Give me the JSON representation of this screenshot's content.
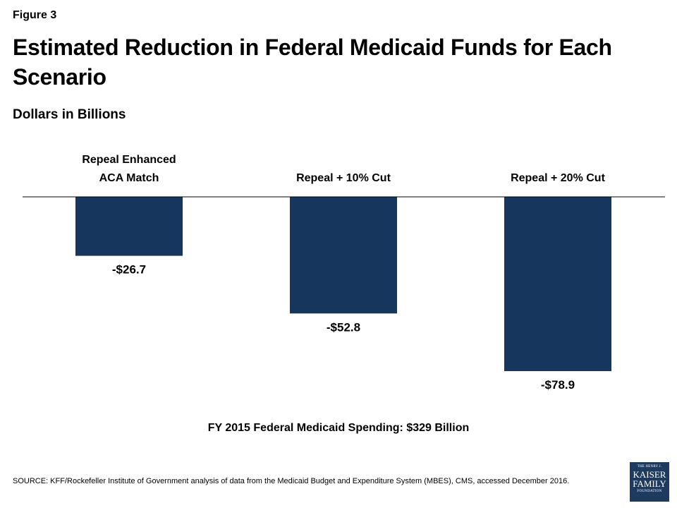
{
  "header": {
    "figure_label": "Figure 3",
    "subtitle": "Dollars in Billions"
  },
  "chart_data": {
    "type": "bar",
    "title": "Estimated Reduction in Federal Medicaid Funds for Each Scenario",
    "subtitle": "Dollars in Billions",
    "categories": [
      [
        "Repeal Enhanced",
        "ACA Match"
      ],
      [
        "Repeal + 10% Cut"
      ],
      [
        "Repeal + 20% Cut"
      ]
    ],
    "values": [
      -26.7,
      -52.8,
      -78.9
    ],
    "value_labels": [
      "-$26.7",
      "-$52.8",
      "-$78.9"
    ],
    "ylim": [
      -78.9,
      0
    ],
    "bar_color": "#17365d",
    "axis_color": "#000000",
    "grid": false,
    "legend": "none"
  },
  "footer": {
    "note": "FY 2015 Federal Medicaid Spending:  $329 Billion",
    "source": "SOURCE:  KFF/Rockefeller Institute of Government  analysis of data from the Medicaid Budget and Expenditure System (MBES), CMS, accessed December 2016."
  },
  "logo": {
    "line1": "THE HENRY J.",
    "line2": "KAISER",
    "line3": "FAMILY",
    "line4": "FOUNDATION"
  }
}
